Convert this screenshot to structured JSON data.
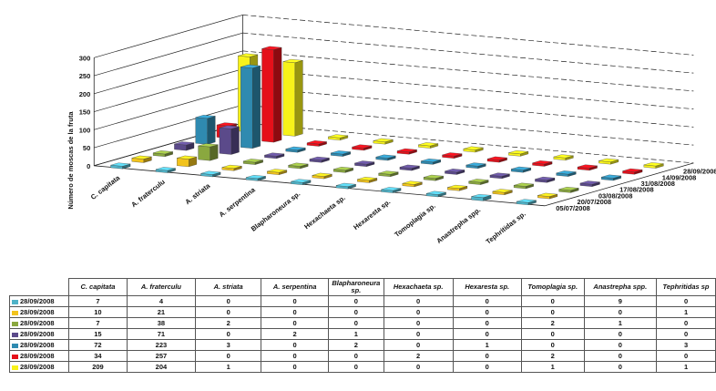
{
  "chart_data": {
    "type": "bar",
    "ylabel": "Número de moscas de la fruta",
    "y_ticks": [
      "0",
      "50",
      "100",
      "150",
      "200",
      "250",
      "300"
    ],
    "ylim": [
      0,
      300
    ],
    "categories": [
      "C. capitata",
      "A. fraterculu",
      "A. striata",
      "A. serpentina",
      "Blapharoneura sp.",
      "Hexachaeta sp.",
      "Hexaresta sp.",
      "Tomoplagia sp.",
      "Anastrepha spp.",
      "Tephritidas sp."
    ],
    "depth_labels": [
      "05/07/2008",
      "20/07/2008",
      "03/08/2008",
      "17/08/2008",
      "31/08/2008",
      "14/09/2008",
      "28/09/2008"
    ],
    "series": [
      {
        "name": "28/09/2008",
        "color": "#4fb3c8",
        "values": [
          7,
          4,
          0,
          0,
          0,
          0,
          0,
          0,
          9,
          0
        ]
      },
      {
        "name": "28/09/2008",
        "color": "#f2c31c",
        "values": [
          10,
          21,
          0,
          0,
          0,
          0,
          0,
          0,
          0,
          1
        ]
      },
      {
        "name": "28/09/2008",
        "color": "#8aa83f",
        "values": [
          7,
          38,
          2,
          0,
          0,
          0,
          0,
          2,
          1,
          0
        ]
      },
      {
        "name": "28/09/2008",
        "color": "#5b4a8a",
        "values": [
          15,
          71,
          0,
          2,
          1,
          0,
          0,
          0,
          0,
          0
        ]
      },
      {
        "name": "28/09/2008",
        "color": "#2f8ab0",
        "values": [
          72,
          223,
          3,
          0,
          2,
          0,
          1,
          0,
          0,
          3
        ]
      },
      {
        "name": "28/09/2008",
        "color": "#e5101a",
        "values": [
          34,
          257,
          0,
          0,
          0,
          2,
          0,
          2,
          0,
          0
        ]
      },
      {
        "name": "28/09/2008",
        "color": "#f7f21a",
        "values": [
          209,
          204,
          1,
          0,
          0,
          0,
          0,
          1,
          0,
          1
        ]
      }
    ],
    "table_headers": [
      "C. capitata",
      "A. fraterculu",
      "A. striata",
      "A. serpentina",
      "Blapharoneura sp.",
      "Hexachaeta sp.",
      "Hexaresta sp.",
      "Tomoplagia sp.",
      "Anastrepha spp.",
      "Tephritidas sp"
    ],
    "grid": true,
    "legend": "table-left"
  }
}
